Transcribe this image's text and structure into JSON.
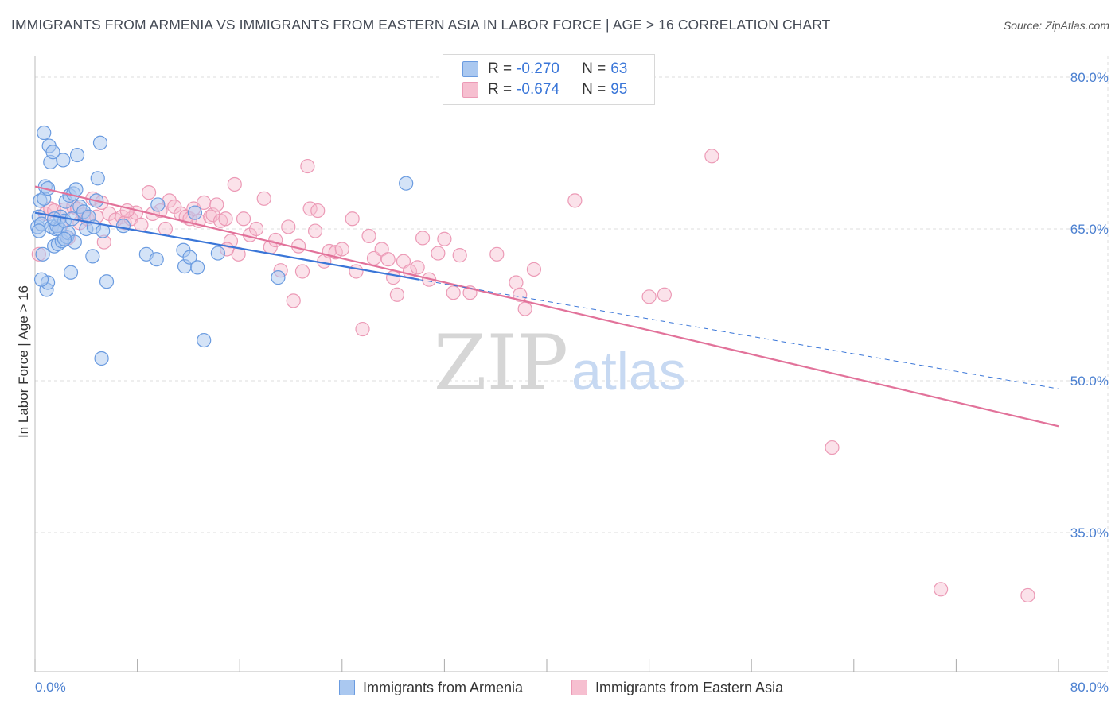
{
  "title": "IMMIGRANTS FROM ARMENIA VS IMMIGRANTS FROM EASTERN ASIA IN LABOR FORCE | AGE > 16 CORRELATION CHART",
  "source": "Source: ZipAtlas.com",
  "legend_top": {
    "armenia": {
      "r_label": "R =",
      "r_value": "-0.270",
      "n_label": "N =",
      "n_value": "63"
    },
    "eastern_asia": {
      "r_label": "R =",
      "r_value": "-0.674",
      "n_label": "N =",
      "n_value": "95"
    }
  },
  "colors": {
    "armenia_fill": "#aac8f0",
    "armenia_stroke": "#6a9be0",
    "armenia_line": "#3a76d8",
    "eastern_asia_fill": "#f6bfd0",
    "eastern_asia_stroke": "#ec9ab6",
    "eastern_asia_line": "#e2729a",
    "axis_label": "#4a7fd0",
    "grid": "#dddddd"
  },
  "chart_data": {
    "type": "scatter",
    "title": "IMMIGRANTS FROM ARMENIA VS IMMIGRANTS FROM EASTERN ASIA IN LABOR FORCE | AGE > 16 CORRELATION CHART",
    "xlabel": "",
    "ylabel": "In Labor Force | Age > 16",
    "xlim": [
      0,
      80
    ],
    "ylim": [
      20,
      82
    ],
    "x_tick_labels": [
      "0.0%",
      "80.0%"
    ],
    "y_ticks": [
      35,
      50,
      65,
      80
    ],
    "y_tick_labels": [
      "35.0%",
      "50.0%",
      "65.0%",
      "80.0%"
    ],
    "grid": true,
    "watermark": {
      "left": "ZIP",
      "right": "atlas"
    },
    "series": [
      {
        "name": "Immigrants from Armenia",
        "r": -0.27,
        "n": 63,
        "trend": {
          "x0": 0.0,
          "y0": 66.6,
          "x1": 30.0,
          "y1": 60.0,
          "dashed_to_x": 80.0,
          "dashed_to_y": 49.2
        },
        "points": [
          [
            0.2,
            65.2
          ],
          [
            0.3,
            66.2
          ],
          [
            0.4,
            67.8
          ],
          [
            0.5,
            65.5
          ],
          [
            0.6,
            62.5
          ],
          [
            0.7,
            68.0
          ],
          [
            0.7,
            74.5
          ],
          [
            0.8,
            69.2
          ],
          [
            0.9,
            59.0
          ],
          [
            1.0,
            59.7
          ],
          [
            1.0,
            69.0
          ],
          [
            1.1,
            73.2
          ],
          [
            1.2,
            71.6
          ],
          [
            1.3,
            65.2
          ],
          [
            1.4,
            72.6
          ],
          [
            1.5,
            63.3
          ],
          [
            1.6,
            65.0
          ],
          [
            1.7,
            65.3
          ],
          [
            1.8,
            63.5
          ],
          [
            1.9,
            65.0
          ],
          [
            2.0,
            66.2
          ],
          [
            2.1,
            63.8
          ],
          [
            2.2,
            71.8
          ],
          [
            2.3,
            65.8
          ],
          [
            2.4,
            67.7
          ],
          [
            2.5,
            64.2
          ],
          [
            2.6,
            64.6
          ],
          [
            2.7,
            68.3
          ],
          [
            2.8,
            60.7
          ],
          [
            2.9,
            66.0
          ],
          [
            3.0,
            68.5
          ],
          [
            3.1,
            63.7
          ],
          [
            3.2,
            68.9
          ],
          [
            3.3,
            72.3
          ],
          [
            3.5,
            67.2
          ],
          [
            3.8,
            66.7
          ],
          [
            4.0,
            65.0
          ],
          [
            4.2,
            66.2
          ],
          [
            4.5,
            62.3
          ],
          [
            4.6,
            65.2
          ],
          [
            4.8,
            67.8
          ],
          [
            4.9,
            70.0
          ],
          [
            5.1,
            73.5
          ],
          [
            5.2,
            52.2
          ],
          [
            5.3,
            64.8
          ],
          [
            5.6,
            59.8
          ],
          [
            6.9,
            65.3
          ],
          [
            8.7,
            62.5
          ],
          [
            9.5,
            62.0
          ],
          [
            9.6,
            67.4
          ],
          [
            11.6,
            62.9
          ],
          [
            11.7,
            61.3
          ],
          [
            12.1,
            62.2
          ],
          [
            12.5,
            66.6
          ],
          [
            12.7,
            61.2
          ],
          [
            13.2,
            54.0
          ],
          [
            14.3,
            62.6
          ],
          [
            19.0,
            60.2
          ],
          [
            29.0,
            69.5
          ],
          [
            0.3,
            64.8
          ],
          [
            1.5,
            66.0
          ],
          [
            2.3,
            64.0
          ],
          [
            0.5,
            60.0
          ]
        ]
      },
      {
        "name": "Immigrants from Eastern Asia",
        "r": -0.674,
        "n": 95,
        "trend": {
          "x0": 0.0,
          "y0": 69.2,
          "x1": 80.0,
          "y1": 45.5
        },
        "points": [
          [
            0.3,
            62.5
          ],
          [
            0.8,
            66.5
          ],
          [
            1.2,
            67.0
          ],
          [
            1.5,
            66.8
          ],
          [
            2.0,
            65.3
          ],
          [
            2.3,
            66.9
          ],
          [
            2.6,
            64.1
          ],
          [
            3.0,
            67.2
          ],
          [
            3.3,
            67.0
          ],
          [
            3.5,
            65.6
          ],
          [
            3.8,
            66.4
          ],
          [
            4.1,
            66.0
          ],
          [
            4.5,
            68.0
          ],
          [
            4.8,
            66.2
          ],
          [
            5.2,
            67.6
          ],
          [
            5.4,
            63.7
          ],
          [
            5.8,
            66.5
          ],
          [
            6.3,
            65.9
          ],
          [
            6.8,
            66.2
          ],
          [
            7.0,
            65.6
          ],
          [
            7.5,
            66.0
          ],
          [
            7.9,
            66.6
          ],
          [
            8.3,
            65.4
          ],
          [
            8.9,
            68.6
          ],
          [
            9.2,
            66.5
          ],
          [
            9.8,
            66.8
          ],
          [
            10.2,
            65.0
          ],
          [
            10.5,
            67.8
          ],
          [
            10.9,
            67.2
          ],
          [
            11.4,
            66.5
          ],
          [
            11.8,
            66.2
          ],
          [
            12.1,
            66.0
          ],
          [
            12.4,
            67.0
          ],
          [
            12.8,
            65.8
          ],
          [
            13.2,
            67.6
          ],
          [
            13.7,
            66.2
          ],
          [
            13.9,
            66.4
          ],
          [
            14.2,
            67.4
          ],
          [
            14.5,
            65.8
          ],
          [
            14.9,
            66.0
          ],
          [
            15.3,
            63.8
          ],
          [
            15.6,
            69.4
          ],
          [
            15.9,
            62.5
          ],
          [
            16.3,
            66.0
          ],
          [
            16.8,
            64.4
          ],
          [
            17.3,
            65.0
          ],
          [
            17.9,
            68.0
          ],
          [
            18.4,
            63.2
          ],
          [
            18.8,
            63.9
          ],
          [
            19.2,
            60.9
          ],
          [
            19.8,
            65.2
          ],
          [
            20.2,
            57.9
          ],
          [
            20.6,
            63.3
          ],
          [
            20.9,
            60.8
          ],
          [
            21.3,
            71.2
          ],
          [
            21.5,
            67.0
          ],
          [
            21.9,
            64.8
          ],
          [
            22.1,
            66.8
          ],
          [
            22.6,
            61.8
          ],
          [
            23.0,
            62.8
          ],
          [
            23.5,
            62.7
          ],
          [
            24.0,
            63.0
          ],
          [
            24.8,
            66.0
          ],
          [
            25.1,
            60.8
          ],
          [
            25.6,
            55.1
          ],
          [
            26.1,
            64.3
          ],
          [
            26.5,
            62.1
          ],
          [
            27.1,
            63.0
          ],
          [
            27.6,
            62.0
          ],
          [
            28.0,
            60.2
          ],
          [
            28.3,
            58.5
          ],
          [
            28.8,
            61.8
          ],
          [
            29.3,
            60.8
          ],
          [
            29.9,
            61.2
          ],
          [
            30.3,
            64.1
          ],
          [
            30.8,
            60.0
          ],
          [
            31.5,
            62.6
          ],
          [
            32.0,
            64.0
          ],
          [
            32.7,
            58.7
          ],
          [
            33.2,
            62.4
          ],
          [
            34.0,
            58.7
          ],
          [
            36.1,
            62.5
          ],
          [
            37.6,
            59.7
          ],
          [
            37.9,
            58.5
          ],
          [
            38.3,
            57.1
          ],
          [
            39.0,
            61.0
          ],
          [
            42.2,
            67.8
          ],
          [
            48.0,
            58.3
          ],
          [
            49.2,
            58.5
          ],
          [
            52.9,
            72.2
          ],
          [
            62.3,
            43.4
          ],
          [
            70.8,
            29.4
          ],
          [
            77.6,
            28.8
          ],
          [
            15.0,
            63.0
          ],
          [
            7.2,
            66.8
          ]
        ]
      }
    ]
  },
  "axis": {
    "y_title": "In Labor Force | Age > 16",
    "x_min_label": "0.0%",
    "x_max_label": "80.0%"
  },
  "bottom_legend": {
    "armenia_label": "Immigrants from Armenia",
    "eastern_asia_label": "Immigrants from Eastern Asia"
  }
}
